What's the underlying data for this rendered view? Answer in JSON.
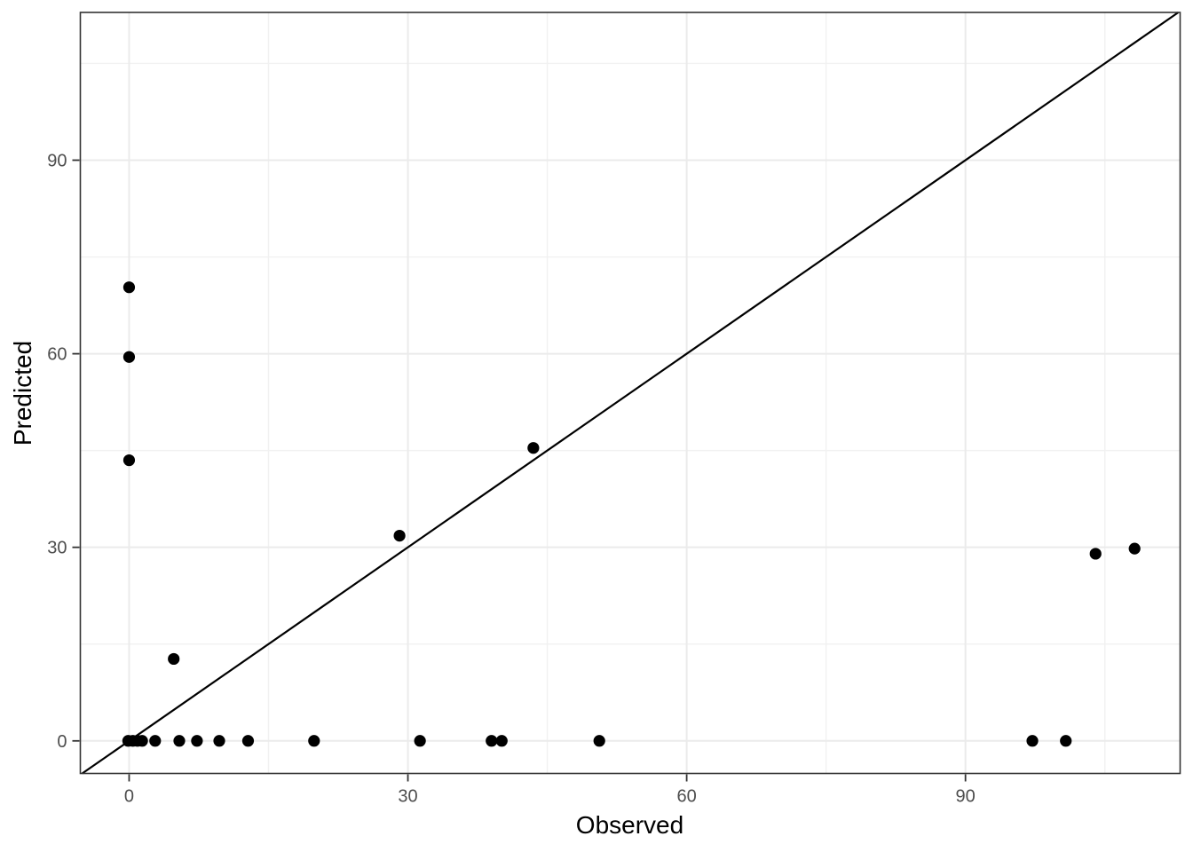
{
  "chart_data": {
    "type": "scatter",
    "title": "",
    "xlabel": "Observed",
    "ylabel": "Predicted",
    "x_ticks": [
      0,
      30,
      60,
      90
    ],
    "y_ticks": [
      0,
      30,
      60,
      90
    ],
    "x_minor_ticks": [
      15,
      45,
      75,
      105
    ],
    "y_minor_ticks": [
      15,
      45,
      75,
      105
    ],
    "xlim": [
      -5.25,
      113.1
    ],
    "ylim": [
      -5.05,
      112.9
    ],
    "grid": true,
    "legend": "none",
    "identity_line": {
      "slope": 1,
      "intercept": 0,
      "t0": -5.05,
      "t1": 112.9
    },
    "points": [
      [
        -0.1,
        0
      ],
      [
        0.4,
        0
      ],
      [
        0.9,
        0
      ],
      [
        1.4,
        0
      ],
      [
        2.8,
        0
      ],
      [
        5.4,
        0
      ],
      [
        7.3,
        0
      ],
      [
        9.7,
        0
      ],
      [
        12.8,
        0
      ],
      [
        19.9,
        0
      ],
      [
        31.3,
        0
      ],
      [
        39.0,
        0
      ],
      [
        40.1,
        0
      ],
      [
        50.6,
        0
      ],
      [
        97.2,
        0
      ],
      [
        100.8,
        0
      ],
      [
        0,
        43.5
      ],
      [
        0,
        59.5
      ],
      [
        0,
        70.3
      ],
      [
        4.8,
        12.7
      ],
      [
        29.1,
        31.8
      ],
      [
        43.5,
        45.4
      ],
      [
        104.0,
        29.0
      ],
      [
        108.2,
        29.8
      ]
    ],
    "colors": {
      "background": "#FFFFFF",
      "panel_background": "#FFFFFF",
      "grid_major": "#EBEBEB",
      "grid_minor": "#F1F1F1",
      "panel_border": "#333333",
      "tick_mark": "#333333",
      "tick_label": "#4D4D4D",
      "axis_title": "#000000",
      "point": "#000000",
      "line": "#000000"
    }
  }
}
